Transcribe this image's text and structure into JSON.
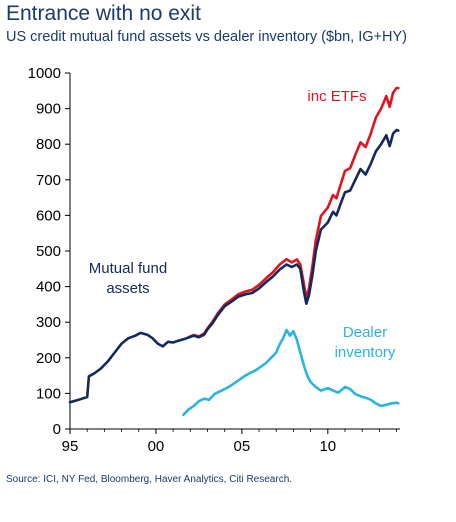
{
  "chart_data": {
    "type": "line",
    "title": "Entrance with no exit",
    "subtitle": "US credit mutual fund assets vs dealer inventory ($bn, IG+HY)",
    "source": "Source: ICI, NY Fed, Bloomberg, Haver Analytics, Citi Research.",
    "xlim": [
      1995,
      2014.2
    ],
    "ylim": [
      0,
      1000
    ],
    "x_ticks": [
      {
        "value": 1995,
        "label": "95"
      },
      {
        "value": 2000,
        "label": "00"
      },
      {
        "value": 2005,
        "label": "05"
      },
      {
        "value": 2010,
        "label": "10"
      }
    ],
    "y_ticks": [
      0,
      100,
      200,
      300,
      400,
      500,
      600,
      700,
      800,
      900,
      1000
    ],
    "grid": false,
    "legend": "inline",
    "series": [
      {
        "name": "Mutual fund assets",
        "label_lines": [
          "Mutual fund",
          "assets"
        ],
        "color": "#12285e",
        "x": [
          1995.0,
          1995.5,
          1996.0,
          1996.1,
          1996.4,
          1996.8,
          1997.2,
          1997.6,
          1998.0,
          1998.4,
          1998.8,
          1999.1,
          1999.5,
          1999.8,
          2000.1,
          2000.4,
          2000.7,
          2001.0,
          2001.3,
          2001.6,
          2001.9,
          2002.2,
          2002.5,
          2002.8,
          2003.0,
          2003.3,
          2003.6,
          2004.0,
          2004.4,
          2004.8,
          2005.2,
          2005.6,
          2006.0,
          2006.4,
          2006.8,
          2007.2,
          2007.6,
          2007.9,
          2008.2,
          2008.4,
          2008.6,
          2008.75,
          2008.9,
          2009.1,
          2009.3,
          2009.6,
          2010.0,
          2010.3,
          2010.5,
          2010.8,
          2011.0,
          2011.3,
          2011.6,
          2011.9,
          2012.2,
          2012.5,
          2012.8,
          2013.1,
          2013.4,
          2013.6,
          2013.8,
          2014.0,
          2014.1
        ],
        "y": [
          75,
          82,
          90,
          148,
          156,
          170,
          190,
          215,
          240,
          255,
          262,
          270,
          265,
          255,
          240,
          232,
          245,
          243,
          248,
          252,
          257,
          262,
          258,
          265,
          280,
          298,
          320,
          345,
          358,
          372,
          378,
          382,
          395,
          412,
          428,
          448,
          462,
          455,
          462,
          450,
          390,
          352,
          375,
          430,
          500,
          560,
          580,
          610,
          600,
          640,
          665,
          670,
          700,
          730,
          715,
          745,
          780,
          800,
          825,
          795,
          830,
          840,
          838
        ]
      },
      {
        "name": "inc ETFs",
        "label_lines": [
          "inc ETFs"
        ],
        "color": "#e0141e",
        "x": [
          2001.9,
          2002.2,
          2002.5,
          2002.8,
          2003.0,
          2003.3,
          2003.6,
          2004.0,
          2004.4,
          2004.8,
          2005.2,
          2005.6,
          2006.0,
          2006.4,
          2006.8,
          2007.2,
          2007.6,
          2007.9,
          2008.2,
          2008.4,
          2008.6,
          2008.75,
          2008.9,
          2009.1,
          2009.3,
          2009.6,
          2010.0,
          2010.3,
          2010.5,
          2010.8,
          2011.0,
          2011.3,
          2011.6,
          2011.9,
          2012.2,
          2012.5,
          2012.8,
          2013.1,
          2013.4,
          2013.6,
          2013.8,
          2014.0,
          2014.1
        ],
        "y": [
          258,
          264,
          260,
          268,
          283,
          302,
          325,
          350,
          364,
          379,
          386,
          391,
          405,
          423,
          440,
          462,
          477,
          468,
          476,
          462,
          410,
          368,
          394,
          455,
          530,
          598,
          622,
          657,
          648,
          695,
          725,
          733,
          770,
          805,
          792,
          830,
          875,
          900,
          935,
          905,
          945,
          958,
          958
        ]
      },
      {
        "name": "Dealer inventory",
        "label_lines": [
          "Dealer",
          "inventory"
        ],
        "color": "#2ab4de",
        "x": [
          2001.6,
          2001.9,
          2002.2,
          2002.5,
          2002.8,
          2003.1,
          2003.4,
          2003.7,
          2004.0,
          2004.3,
          2004.6,
          2004.9,
          2005.2,
          2005.5,
          2005.8,
          2006.1,
          2006.4,
          2006.7,
          2007.0,
          2007.2,
          2007.4,
          2007.6,
          2007.8,
          2008.0,
          2008.2,
          2008.4,
          2008.6,
          2008.8,
          2009.0,
          2009.3,
          2009.6,
          2010.0,
          2010.3,
          2010.6,
          2011.0,
          2011.3,
          2011.6,
          2011.9,
          2012.2,
          2012.5,
          2012.8,
          2013.1,
          2013.4,
          2013.7,
          2014.0,
          2014.1
        ],
        "y": [
          40,
          55,
          65,
          78,
          85,
          82,
          98,
          105,
          112,
          120,
          130,
          140,
          150,
          158,
          165,
          175,
          185,
          200,
          215,
          238,
          255,
          278,
          262,
          275,
          250,
          215,
          180,
          150,
          132,
          118,
          108,
          115,
          108,
          102,
          118,
          112,
          98,
          92,
          88,
          82,
          72,
          65,
          68,
          72,
          74,
          72
        ]
      }
    ]
  }
}
